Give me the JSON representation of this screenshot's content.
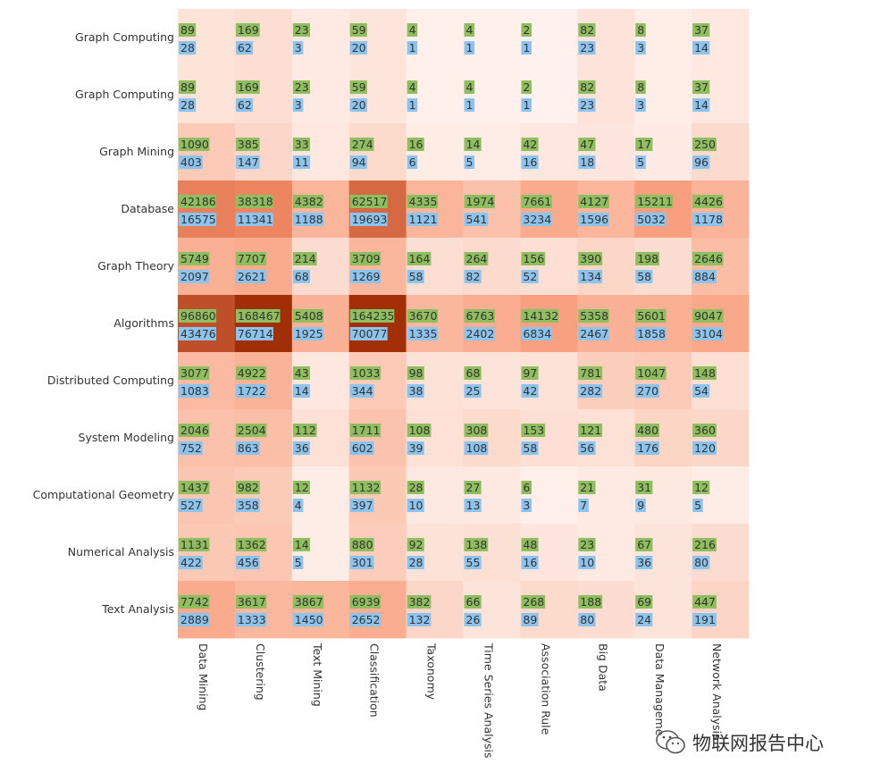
{
  "chart_data": {
    "type": "heatmap",
    "title": "",
    "row_labels": [
      "Graph Computing",
      "Graph Computing",
      "Graph Mining",
      "Database",
      "Graph Theory",
      "Algorithms",
      "Distributed Computing",
      "System Modeling",
      "Computational Geometry",
      "Numerical Analysis",
      "Text Analysis"
    ],
    "column_labels": [
      "Data Mining",
      "Clustering",
      "Text Mining",
      "Classification",
      "Taxonomy",
      "Time Series Analysis",
      "Association Rule",
      "Big Data",
      "Data Manageme",
      "Network Analysis"
    ],
    "series": [
      {
        "name": "green",
        "color": "#8fbe5e",
        "values": [
          [
            89,
            169,
            23,
            59,
            4,
            4,
            2,
            82,
            8,
            37
          ],
          [
            89,
            169,
            23,
            59,
            4,
            4,
            2,
            82,
            8,
            37
          ],
          [
            1090,
            385,
            33,
            274,
            16,
            14,
            42,
            47,
            17,
            250
          ],
          [
            42186,
            38318,
            4382,
            62517,
            4335,
            1974,
            7661,
            4127,
            15211,
            4426
          ],
          [
            5749,
            7707,
            214,
            3709,
            164,
            264,
            156,
            390,
            198,
            2646
          ],
          [
            96860,
            168467,
            5408,
            164235,
            3670,
            6763,
            14132,
            5358,
            5601,
            9047
          ],
          [
            3077,
            4922,
            43,
            1033,
            98,
            68,
            97,
            781,
            1047,
            148
          ],
          [
            2046,
            2504,
            112,
            1711,
            108,
            308,
            153,
            121,
            480,
            360
          ],
          [
            1437,
            982,
            12,
            1132,
            28,
            27,
            6,
            21,
            31,
            12
          ],
          [
            1131,
            1362,
            14,
            880,
            92,
            138,
            48,
            23,
            67,
            216
          ],
          [
            7742,
            3617,
            3867,
            6939,
            382,
            66,
            268,
            188,
            69,
            447
          ]
        ]
      },
      {
        "name": "blue",
        "color": "#8cc4ee",
        "values": [
          [
            28,
            62,
            3,
            20,
            1,
            1,
            1,
            23,
            3,
            14
          ],
          [
            28,
            62,
            3,
            20,
            1,
            1,
            1,
            23,
            3,
            14
          ],
          [
            403,
            147,
            11,
            94,
            6,
            5,
            16,
            18,
            5,
            96
          ],
          [
            16575,
            11341,
            1188,
            19693,
            1121,
            541,
            3234,
            1596,
            5032,
            1178
          ],
          [
            2097,
            2621,
            68,
            1269,
            58,
            82,
            52,
            134,
            58,
            884
          ],
          [
            43476,
            76714,
            1925,
            70077,
            1335,
            2402,
            6834,
            2467,
            1858,
            3104
          ],
          [
            1083,
            1722,
            14,
            344,
            38,
            25,
            42,
            282,
            270,
            54
          ],
          [
            752,
            863,
            36,
            602,
            39,
            108,
            58,
            56,
            176,
            120
          ],
          [
            527,
            358,
            4,
            397,
            10,
            13,
            3,
            7,
            9,
            5
          ],
          [
            422,
            456,
            5,
            301,
            28,
            55,
            16,
            10,
            36,
            80
          ],
          [
            2889,
            1333,
            1450,
            2652,
            132,
            26,
            89,
            80,
            24,
            191
          ]
        ]
      }
    ],
    "color_scale": [
      "#fff2ee",
      "#fcd9cb",
      "#fbb59a",
      "#f7906d",
      "#a02d05"
    ],
    "legend": "none"
  },
  "watermark": {
    "text": "物联网报告中心"
  }
}
